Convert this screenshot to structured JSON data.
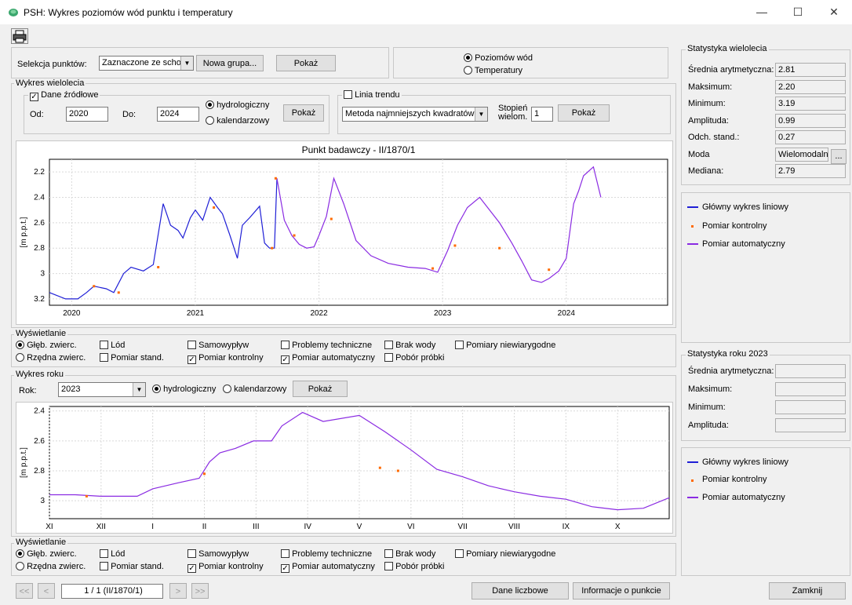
{
  "window": {
    "title": "PSH: Wykres poziomów wód punktu i temperatury",
    "minimize": "—",
    "maximize": "☐",
    "close": "✕"
  },
  "toolbar": {
    "print_icon": "printer-icon"
  },
  "selection": {
    "label": "Selekcja punktów:",
    "combo_value": "Zaznaczone ze schow",
    "new_group": "Nowa grupa...",
    "show": "Pokaż"
  },
  "mode": {
    "levels": "Poziomów wód",
    "temperature": "Temperatury"
  },
  "multi": {
    "group_label": "Wykres wielolecia",
    "source_label": "Dane źródłowe",
    "from_label": "Od:",
    "from_value": "2020",
    "to_label": "Do:",
    "to_value": "2024",
    "hydro": "hydrologiczny",
    "calendar": "kalendarzowy",
    "show": "Pokaż",
    "trend_label": "Linia trendu",
    "trend_method": "Metoda najmniejszych kwadratów",
    "degree_label1": "Stopień",
    "degree_label2": "wielom.",
    "degree_value": "1",
    "trend_show": "Pokaż"
  },
  "chart1": {
    "title": "Punkt badawczy - II/1870/1",
    "ylabel": "[m p.p.t.]",
    "y_ticks": [
      "2.2",
      "2.4",
      "2.6",
      "2.8",
      "3",
      "3.2"
    ],
    "x_ticks": [
      "2020",
      "2021",
      "2022",
      "2023",
      "2024"
    ]
  },
  "display1": {
    "group_label": "Wyświetlanie",
    "glebokosc": "Głęb. zwierc.",
    "rzedna": "Rzędna zwierc.",
    "lod": "Lód",
    "stand": "Pomiar stand.",
    "samowyplyw": "Samowypływ",
    "kontrolny": "Pomiar kontrolny",
    "problemy": "Problemy techniczne",
    "automatyczny": "Pomiar automatyczny",
    "brak_wody": "Brak wody",
    "pobor": "Pobór próbki",
    "niewiarygodne": "Pomiary niewiarygodne"
  },
  "year": {
    "group_label": "Wykres roku",
    "rok_label": "Rok:",
    "rok_value": "2023",
    "hydro": "hydrologiczny",
    "calendar": "kalendarzowy",
    "show": "Pokaż"
  },
  "chart2": {
    "ylabel": "[m p.p.t.]",
    "y_ticks": [
      "2.4",
      "2.6",
      "2.8",
      "3"
    ],
    "x_ticks": [
      "XI",
      "XII",
      "I",
      "II",
      "III",
      "IV",
      "V",
      "VI",
      "VII",
      "VIII",
      "IX",
      "X"
    ]
  },
  "display2": {
    "group_label": "Wyświetlanie",
    "glebokosc": "Głęb. zwierc.",
    "rzedna": "Rzędna zwierc.",
    "lod": "Lód",
    "stand": "Pomiar stand.",
    "samowyplyw": "Samowypływ",
    "kontrolny": "Pomiar kontrolny",
    "problemy": "Problemy techniczne",
    "automatyczny": "Pomiar automatyczny",
    "brak_wody": "Brak wody",
    "pobor": "Pobór próbki",
    "niewiarygodne": "Pomiary niewiarygodne"
  },
  "stats_multi": {
    "group_label": "Statystyka wielolecia",
    "rows": [
      {
        "label": "Średnia arytmetyczna:",
        "value": "2.81"
      },
      {
        "label": "Maksimum:",
        "value": "2.20"
      },
      {
        "label": "Minimum:",
        "value": "3.19"
      },
      {
        "label": "Amplituda:",
        "value": "0.99"
      },
      {
        "label": "Odch. stand.:",
        "value": "0.27"
      },
      {
        "label": "Moda",
        "value": "Wielomodalny"
      },
      {
        "label": "Mediana:",
        "value": "2.79"
      }
    ],
    "moda_button": "..."
  },
  "legend1": {
    "main": "Główny wykres liniowy",
    "control": "Pomiar kontrolny",
    "auto": "Pomiar automatyczny"
  },
  "stats_year": {
    "group_label": "Statystyka roku 2023",
    "rows": [
      {
        "label": "Średnia arytmetyczna:",
        "value": ""
      },
      {
        "label": "Maksimum:",
        "value": ""
      },
      {
        "label": "Minimum:",
        "value": ""
      },
      {
        "label": "Amplituda:",
        "value": ""
      }
    ]
  },
  "legend2": {
    "main": "Główny wykres liniowy",
    "control": "Pomiar kontrolny",
    "auto": "Pomiar automatyczny"
  },
  "nav": {
    "first": "<<",
    "prev": "<",
    "page": "1 / 1 (II/1870/1)",
    "next": ">",
    "last": ">>"
  },
  "footer": {
    "numeric": "Dane liczbowe",
    "info": "Informacje o punkcie",
    "close": "Zamknij"
  },
  "colors": {
    "main_line": "#1f1fd6",
    "auto_line": "#8a2be2",
    "control_marker": "#ff6a00"
  },
  "chart_data": [
    {
      "type": "line",
      "title": "Punkt badawczy - II/1870/1",
      "xlabel": "",
      "ylabel": "[m p.p.t.]",
      "ylim": [
        3.25,
        2.1
      ],
      "y_inverted": true,
      "x_ticks": [
        "2020",
        "2021",
        "2022",
        "2023",
        "2024"
      ],
      "xlim": [
        2019.82,
        2024.82
      ],
      "series": [
        {
          "name": "Główny wykres liniowy",
          "x": [
            2019.82,
            2019.95,
            2020.05,
            2020.12,
            2020.18,
            2020.28,
            2020.34,
            2020.42,
            2020.48,
            2020.58,
            2020.66,
            2020.74,
            2020.8,
            2020.86,
            2020.9,
            2020.96,
            2021.0,
            2021.06,
            2021.12,
            2021.18,
            2021.22,
            2021.28,
            2021.34,
            2021.38,
            2021.44,
            2021.52,
            2021.56,
            2021.6,
            2021.64,
            2021.66
          ],
          "y": [
            3.15,
            3.2,
            3.2,
            3.15,
            3.1,
            3.12,
            3.15,
            3.0,
            2.95,
            2.98,
            2.93,
            2.45,
            2.62,
            2.66,
            2.72,
            2.56,
            2.5,
            2.58,
            2.4,
            2.48,
            2.53,
            2.7,
            2.88,
            2.62,
            2.56,
            2.47,
            2.76,
            2.8,
            2.8,
            2.25
          ]
        },
        {
          "name": "Pomiar automatyczny",
          "x": [
            2021.66,
            2021.72,
            2021.78,
            2021.84,
            2021.9,
            2021.96,
            2022.0,
            2022.06,
            2022.12,
            2022.2,
            2022.3,
            2022.42,
            2022.56,
            2022.72,
            2022.86,
            2022.96,
            2023.04,
            2023.12,
            2023.2,
            2023.3,
            2023.38,
            2023.46,
            2023.56,
            2023.64,
            2023.72,
            2023.8,
            2023.86,
            2023.94,
            2024.0,
            2024.06,
            2024.1,
            2024.14,
            2024.22,
            2024.28
          ],
          "y": [
            2.25,
            2.58,
            2.7,
            2.77,
            2.8,
            2.79,
            2.7,
            2.55,
            2.25,
            2.45,
            2.74,
            2.86,
            2.92,
            2.95,
            2.96,
            2.99,
            2.82,
            2.62,
            2.48,
            2.4,
            2.5,
            2.6,
            2.76,
            2.9,
            3.05,
            3.07,
            3.04,
            2.98,
            2.88,
            2.45,
            2.35,
            2.23,
            2.16,
            2.4
          ]
        },
        {
          "name": "Pomiar kontrolny",
          "x": [
            2020.18,
            2020.38,
            2020.7,
            2021.15,
            2021.62,
            2021.65,
            2021.8,
            2022.1,
            2022.92,
            2023.1,
            2023.46,
            2023.86
          ],
          "y": [
            3.1,
            3.15,
            2.95,
            2.48,
            2.8,
            2.25,
            2.7,
            2.57,
            2.96,
            2.78,
            2.8,
            2.97
          ]
        }
      ]
    },
    {
      "type": "line",
      "title": "",
      "xlabel": "",
      "ylabel": "[m p.p.t.]",
      "ylim": [
        3.12,
        2.37
      ],
      "y_inverted": true,
      "categories": [
        "XI",
        "XII",
        "I",
        "II",
        "III",
        "IV",
        "V",
        "VI",
        "VII",
        "VIII",
        "IX",
        "X"
      ],
      "xlim": [
        0,
        12
      ],
      "series": [
        {
          "name": "Pomiar automatyczny",
          "x": [
            0,
            0.5,
            1,
            1.5,
            1.7,
            2.0,
            2.5,
            2.9,
            3.1,
            3.3,
            3.6,
            3.95,
            4.3,
            4.5,
            4.9,
            5.3,
            6.0,
            6.5,
            7.0,
            7.5,
            8.0,
            8.5,
            9.0,
            9.5,
            10.0,
            10.5,
            11.0,
            11.5,
            12.0
          ],
          "y": [
            2.96,
            2.96,
            2.97,
            2.97,
            2.97,
            2.92,
            2.88,
            2.85,
            2.74,
            2.68,
            2.65,
            2.6,
            2.6,
            2.5,
            2.41,
            2.47,
            2.43,
            2.54,
            2.66,
            2.79,
            2.84,
            2.9,
            2.94,
            2.97,
            2.99,
            3.04,
            3.06,
            3.05,
            2.98
          ]
        },
        {
          "name": "Pomiar kontrolny",
          "x": [
            0.72,
            3.0,
            6.4,
            6.75
          ],
          "y": [
            2.97,
            2.82,
            2.78,
            2.8
          ]
        }
      ]
    }
  ]
}
